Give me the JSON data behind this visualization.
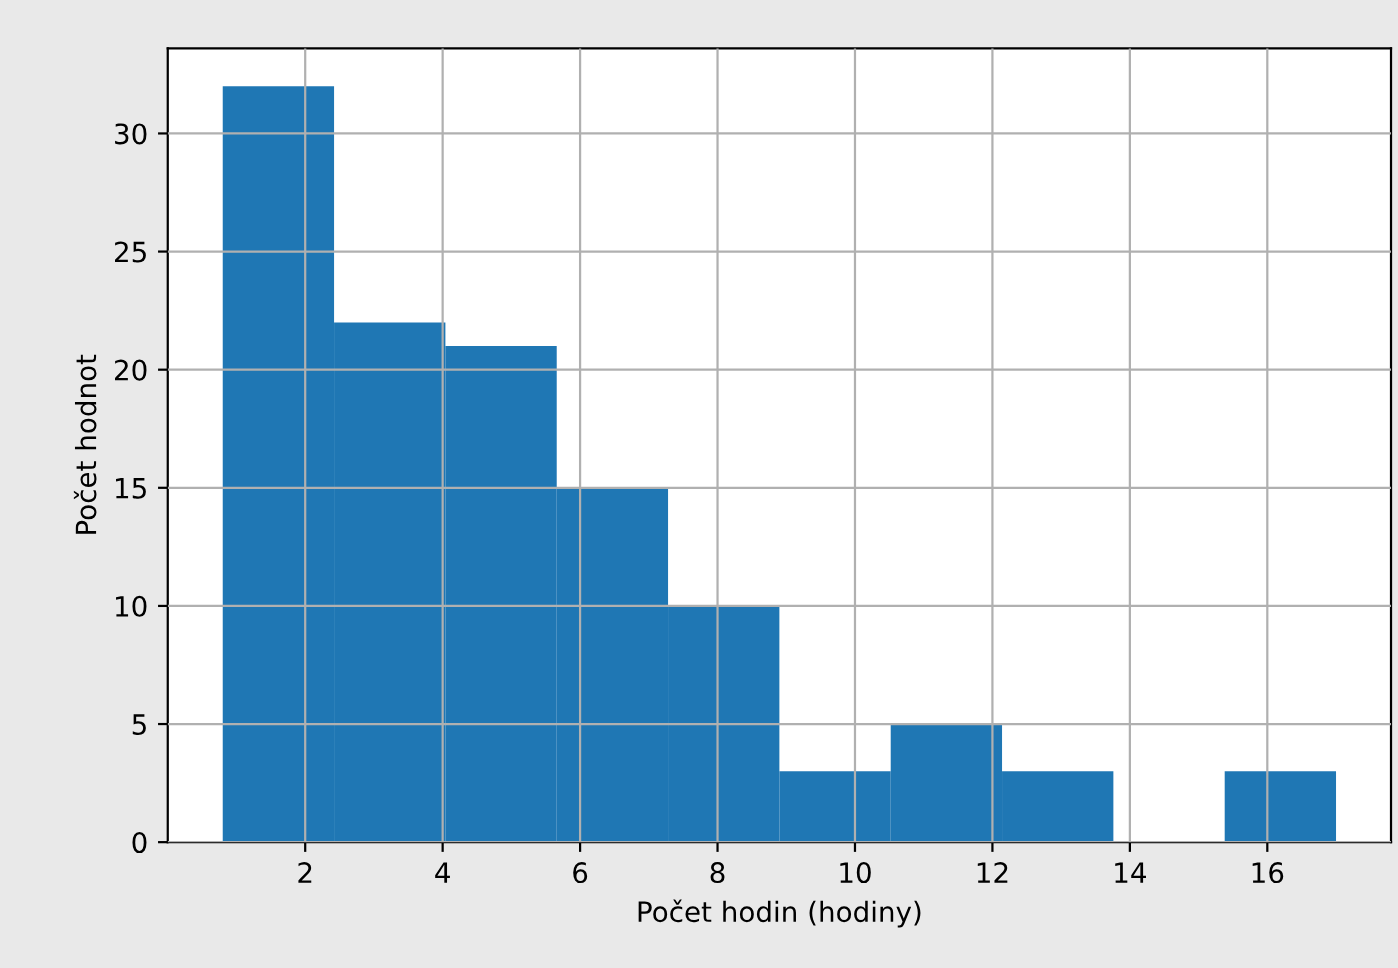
{
  "chart_data": {
    "type": "histogram",
    "xlabel": "Počet hodin (hodiny)",
    "ylabel": "Počet hodnot",
    "bins": [
      0.8,
      2.42,
      4.04,
      5.66,
      7.28,
      8.9,
      10.52,
      12.14,
      13.76,
      15.38,
      17.0
    ],
    "values": [
      32,
      22,
      21,
      15,
      10,
      3,
      5,
      3,
      0,
      3
    ],
    "color": "#1f77b4",
    "xlim": [
      0,
      17.8
    ],
    "ylim": [
      0,
      33.6
    ],
    "xticks": [
      2,
      4,
      6,
      8,
      10,
      12,
      14,
      16
    ],
    "yticks": [
      0,
      5,
      10,
      15,
      20,
      25,
      30
    ],
    "grid": true
  }
}
